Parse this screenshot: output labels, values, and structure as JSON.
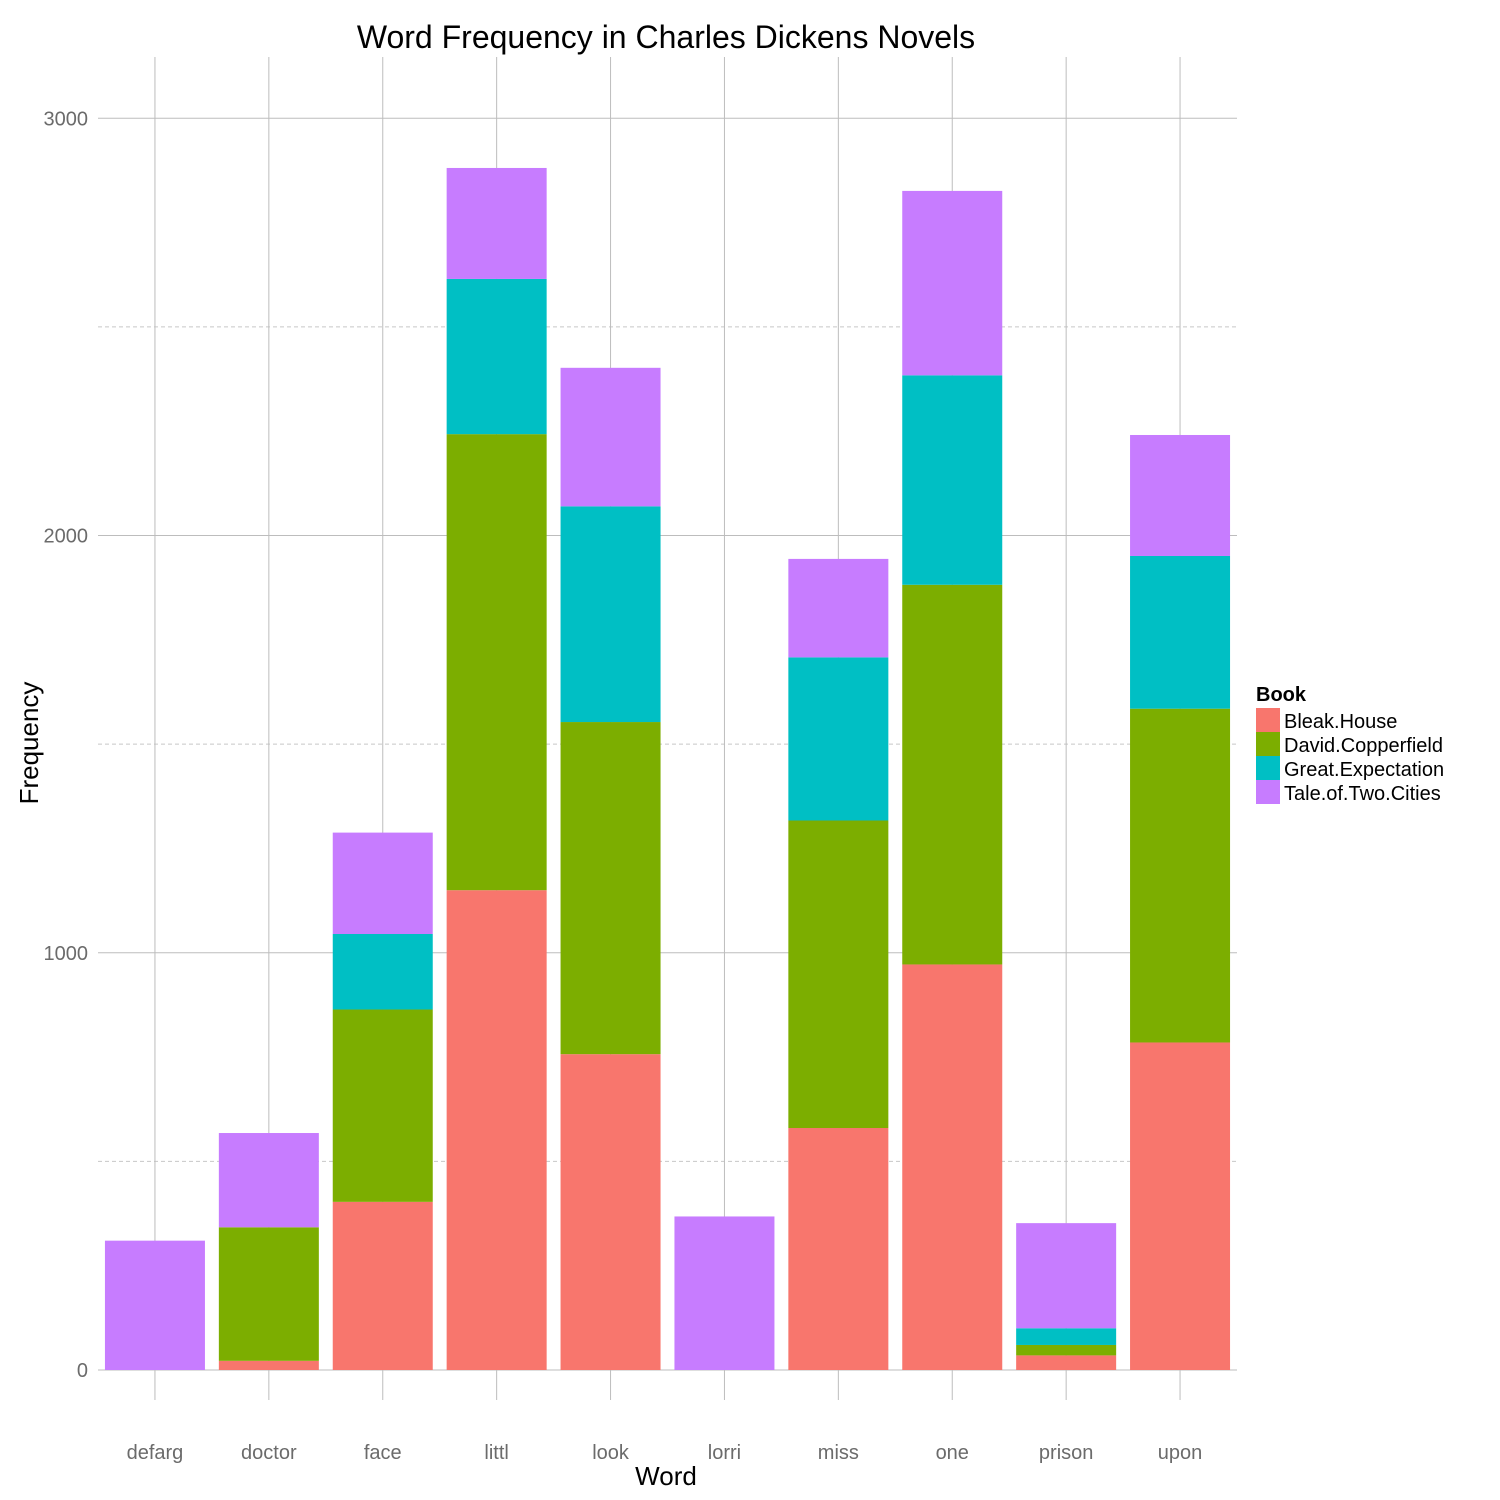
{
  "chart_data": {
    "type": "bar",
    "stacked": true,
    "title": "Word Frequency in Charles Dickens Novels",
    "xlabel": "Word",
    "ylabel": "Frequency",
    "categories": [
      "defarg",
      "doctor",
      "face",
      "littl",
      "look",
      "lorri",
      "miss",
      "one",
      "prison",
      "upon"
    ],
    "ylim": [
      -40,
      3150
    ],
    "yticks": [
      0,
      1000,
      2000,
      3000
    ],
    "ytick_labels": [
      "0",
      "1000",
      "2000",
      "3000"
    ],
    "minor_gridlines": [
      500,
      1500,
      2500
    ],
    "grid": true,
    "legend": {
      "title": "Book",
      "position": "right"
    },
    "series": [
      {
        "name": "Bleak.House",
        "color": "#F8766D",
        "values": [
          0,
          22,
          403,
          1150,
          757,
          0,
          580,
          972,
          35,
          785
        ]
      },
      {
        "name": "David.Copperfield",
        "color": "#7CAE00",
        "values": [
          0,
          320,
          461,
          1093,
          796,
          0,
          737,
          910,
          25,
          800
        ]
      },
      {
        "name": "Great.Expectation",
        "color": "#00BFC4",
        "values": [
          0,
          0,
          181,
          372,
          517,
          0,
          391,
          502,
          40,
          366
        ]
      },
      {
        "name": "Tale.of.Two.Cities",
        "color": "#C77CFF",
        "values": [
          310,
          226,
          243,
          266,
          332,
          368,
          236,
          442,
          252,
          290
        ]
      }
    ]
  }
}
